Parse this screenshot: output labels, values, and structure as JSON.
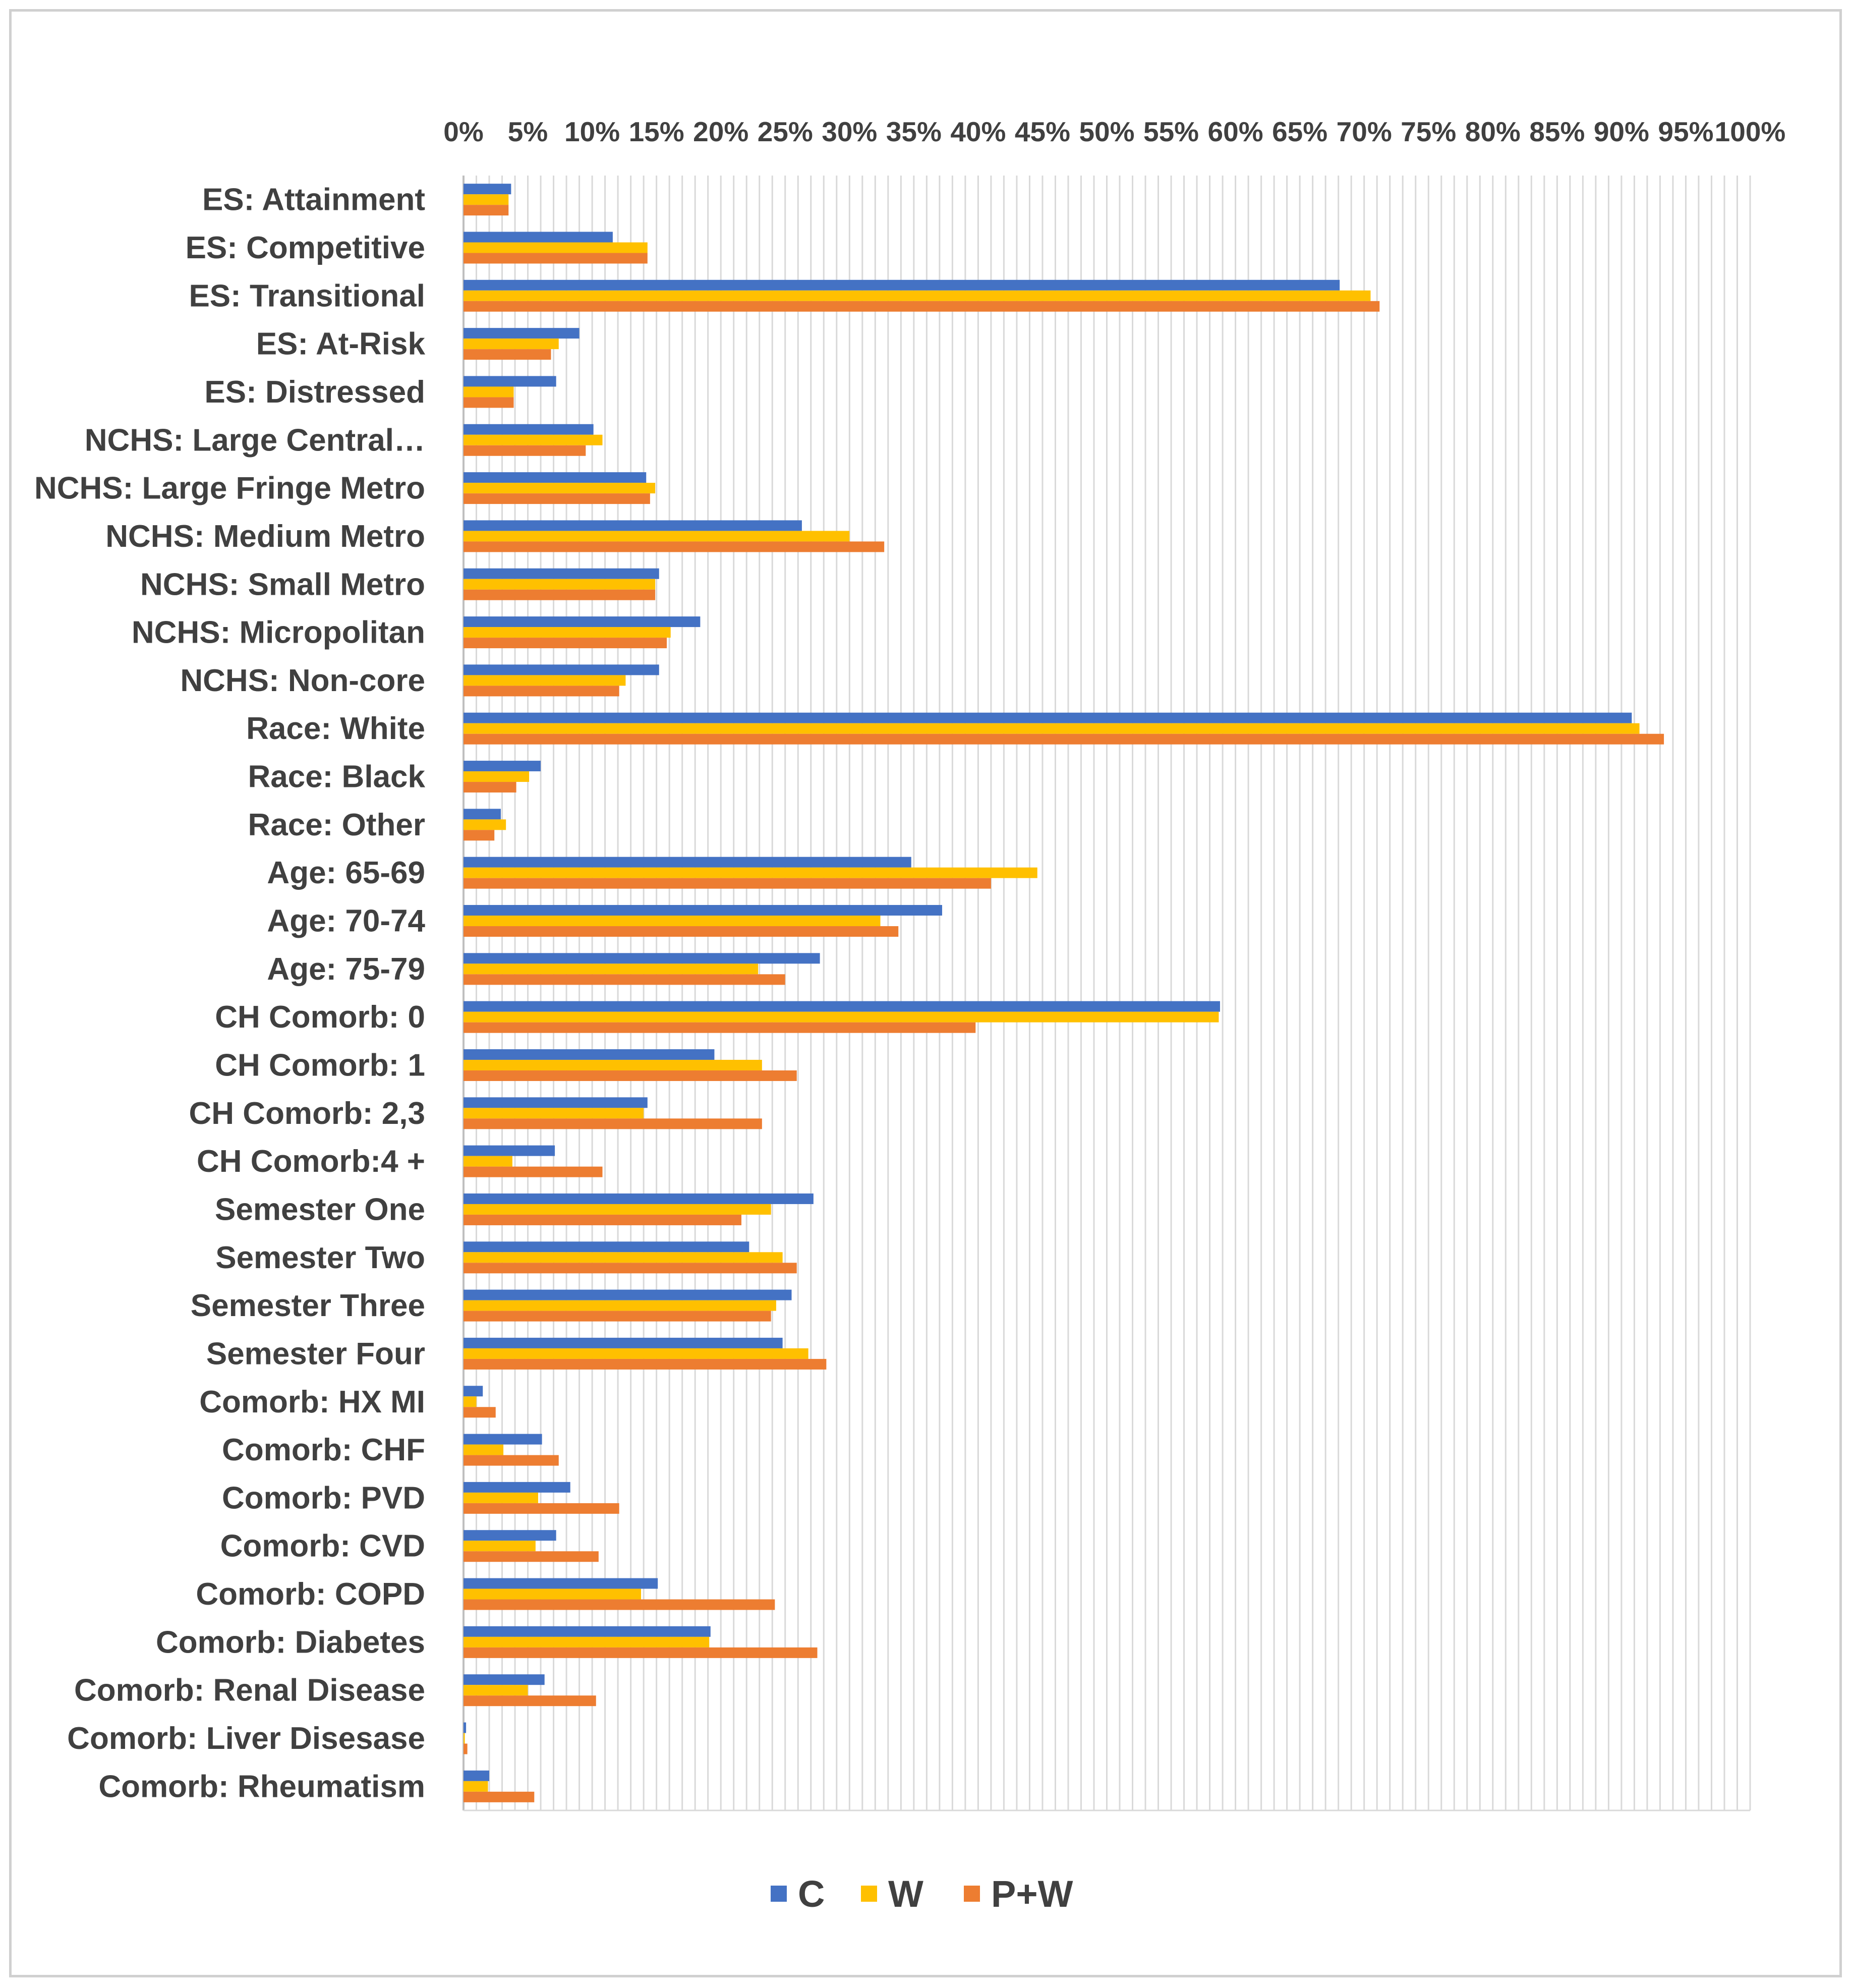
{
  "chart_data": {
    "type": "bar",
    "orientation": "horizontal",
    "title": "",
    "xlabel": "",
    "ylabel": "",
    "xlim": [
      0,
      100
    ],
    "tick_labels": [
      "0%",
      "5%",
      "10%",
      "15%",
      "20%",
      "25%",
      "30%",
      "35%",
      "40%",
      "45%",
      "50%",
      "55%",
      "60%",
      "65%",
      "70%",
      "75%",
      "80%",
      "85%",
      "90%",
      "95%",
      "100%"
    ],
    "gridlines": "vertical, every 1%",
    "legend_position": "bottom",
    "categories": [
      "ES: Attainment",
      "ES: Competitive",
      "ES: Transitional",
      "ES: At-Risk",
      "ES: Distressed",
      "NCHS: Large Central…",
      "NCHS: Large Fringe Metro",
      "NCHS: Medium Metro",
      "NCHS: Small Metro",
      "NCHS: Micropolitan",
      "NCHS: Non-core",
      "Race: White",
      "Race: Black",
      "Race: Other",
      "Age: 65-69",
      "Age: 70-74",
      "Age: 75-79",
      "CH Comorb: 0",
      "CH Comorb: 1",
      "CH Comorb: 2,3",
      "CH Comorb:4 +",
      "Semester One",
      "Semester Two",
      "Semester Three",
      "Semester Four",
      "Comorb: HX MI",
      "Comorb: CHF",
      "Comorb: PVD",
      "Comorb: CVD",
      "Comorb: COPD",
      "Comorb: Diabetes",
      "Comorb: Renal Disease",
      "Comorb: Liver Disesase",
      "Comorb: Rheumatism"
    ],
    "series": [
      {
        "name": "C",
        "color": "#4472C4",
        "values": [
          3.7,
          11.6,
          68.1,
          9.0,
          7.2,
          10.1,
          14.2,
          26.3,
          15.2,
          18.4,
          15.2,
          90.8,
          6.0,
          2.9,
          34.8,
          37.2,
          27.7,
          58.8,
          19.5,
          14.3,
          7.1,
          27.2,
          22.2,
          25.5,
          24.8,
          1.5,
          6.1,
          8.3,
          7.2,
          15.1,
          19.2,
          6.3,
          0.2,
          2.0
        ]
      },
      {
        "name": "W",
        "color": "#FFC000",
        "values": [
          3.5,
          14.3,
          70.5,
          7.4,
          3.9,
          10.8,
          14.9,
          30.0,
          14.9,
          16.1,
          12.6,
          91.4,
          5.1,
          3.3,
          44.6,
          32.4,
          22.9,
          58.7,
          23.2,
          14.0,
          3.8,
          23.9,
          24.8,
          24.3,
          26.8,
          1.0,
          3.1,
          5.8,
          5.6,
          13.8,
          19.1,
          5.0,
          0.1,
          1.9
        ]
      },
      {
        "name": "P+W",
        "color": "#ED7D31",
        "values": [
          3.5,
          14.3,
          71.2,
          6.8,
          3.9,
          9.5,
          14.5,
          32.7,
          14.9,
          15.8,
          12.1,
          93.3,
          4.1,
          2.4,
          41.0,
          33.8,
          25.0,
          39.8,
          25.9,
          23.2,
          10.8,
          21.6,
          25.9,
          23.9,
          28.2,
          2.5,
          7.4,
          12.1,
          10.5,
          24.2,
          27.5,
          10.3,
          0.3,
          5.5
        ]
      }
    ]
  }
}
